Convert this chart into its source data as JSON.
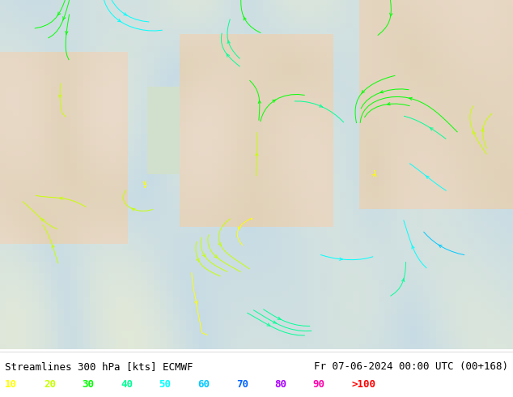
{
  "title_left": "Streamlines 300 hPa [kts] ECMWF",
  "title_right": "Fr 07-06-2024 00:00 UTC (00+168)",
  "legend_values": [
    "10",
    "20",
    "30",
    "40",
    "50",
    "60",
    "70",
    "80",
    "90",
    ">100"
  ],
  "legend_colors": [
    "#ffff00",
    "#c8ff00",
    "#00ff00",
    "#00ff96",
    "#00ffff",
    "#00c8ff",
    "#0064ff",
    "#aa00ff",
    "#ff00aa",
    "#ff0000"
  ],
  "bg_color": "#f0f0e8",
  "text_color": "#000000",
  "bottom_bg": "#ffffff",
  "fig_width": 6.34,
  "fig_height": 4.9,
  "dpi": 100,
  "streamline_bg_color": "#d4ecd4",
  "land_color": "#e8e0c8",
  "sea_color": "#c8dce8"
}
